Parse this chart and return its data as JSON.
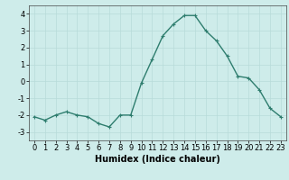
{
  "x": [
    0,
    1,
    2,
    3,
    4,
    5,
    6,
    7,
    8,
    9,
    10,
    11,
    12,
    13,
    14,
    15,
    16,
    17,
    18,
    19,
    20,
    21,
    22,
    23
  ],
  "y": [
    -2.1,
    -2.3,
    -2.0,
    -1.8,
    -2.0,
    -2.1,
    -2.5,
    -2.7,
    -2.0,
    -2.0,
    -0.1,
    1.3,
    2.7,
    3.4,
    3.9,
    3.9,
    3.0,
    2.4,
    1.5,
    0.3,
    0.2,
    -0.5,
    -1.6,
    -2.1
  ],
  "line_color": "#2e7d6e",
  "marker": "+",
  "marker_size": 3,
  "xlabel": "Humidex (Indice chaleur)",
  "ylim": [
    -3.5,
    4.5
  ],
  "xlim": [
    -0.5,
    23.5
  ],
  "yticks": [
    -3,
    -2,
    -1,
    0,
    1,
    2,
    3,
    4
  ],
  "xticks": [
    0,
    1,
    2,
    3,
    4,
    5,
    6,
    7,
    8,
    9,
    10,
    11,
    12,
    13,
    14,
    15,
    16,
    17,
    18,
    19,
    20,
    21,
    22,
    23
  ],
  "bg_color": "#ceecea",
  "grid_color": "#b8dbd9",
  "line_width": 1.0,
  "xlabel_fontsize": 7,
  "tick_fontsize": 6
}
